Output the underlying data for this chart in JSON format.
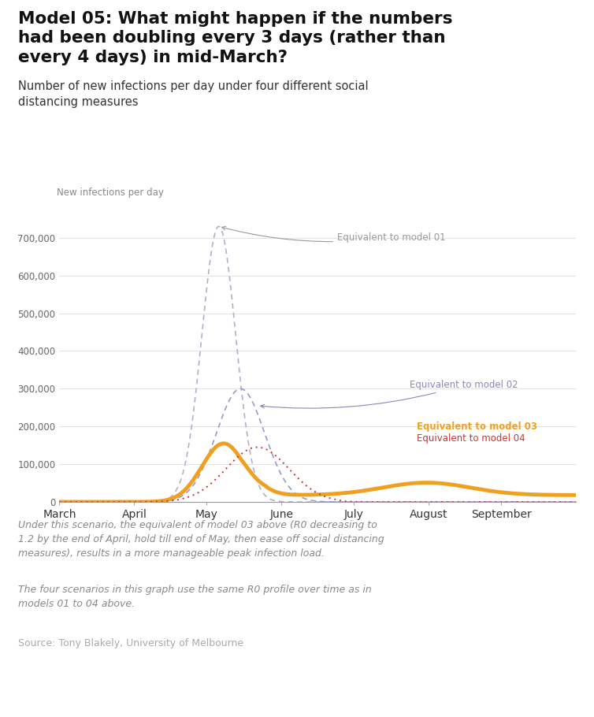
{
  "title_line1": "Model 05: What might happen if the numbers",
  "title_line2": "had been doubling every 3 days (rather than",
  "title_line3": "every 4 days) in mid-March?",
  "subtitle": "Number of new infections per day under four different social\ndistancing measures",
  "ylabel": "New infections per day",
  "yticks": [
    0,
    100000,
    200000,
    300000,
    400000,
    500000,
    600000,
    700000
  ],
  "ytick_labels": [
    "0",
    "100,000",
    "200,000",
    "300,000",
    "400,000",
    "500,000",
    "600,000",
    "700,000"
  ],
  "ymax": 760000,
  "xlabel_ticks": [
    "March",
    "April",
    "May",
    "June",
    "July",
    "August",
    "September"
  ],
  "month_positions": [
    0,
    31,
    61,
    92,
    122,
    153,
    183
  ],
  "xmax": 214,
  "note1": "Under this scenario, the equivalent of model 03 above (R0 decreasing to\n1.2 by the end of April, hold till end of May, then ease off social distancing\nmeasures), results in a more manageable peak infection load.",
  "note2": "The four scenarios in this graph use the same R0 profile over time as in\nmodels 01 to 04 above.",
  "source": "Source: Tony Blakely, University of Melbourne",
  "color_m01": "#b0b0cc",
  "color_m02": "#9999cc",
  "color_m03": "#f0a020",
  "color_m04": "#cc3333",
  "annotation_m01": "Equivalent to model 01",
  "annotation_m02": "Equivalent to model 02",
  "annotation_m03": "Equivalent to model 03",
  "annotation_m04": "Equivalent to model 04",
  "background": "#ffffff"
}
